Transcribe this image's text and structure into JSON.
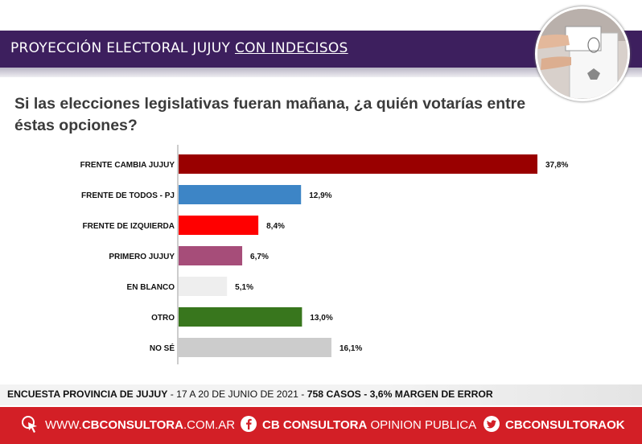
{
  "header": {
    "title_main": "PROYECCIÓN ELECTORAL JUJUY",
    "title_underlined": "CON INDECISOS"
  },
  "question": "Si las elecciones legislativas fueran mañana, ¿a quién votarías entre éstas opciones?",
  "chart_data": {
    "type": "bar",
    "orientation": "horizontal",
    "categories": [
      "FRENTE CAMBIA JUJUY",
      "FRENTE DE TODOS - PJ",
      "FRENTE DE IZQUIERDA",
      "PRIMERO JUJUY",
      "EN BLANCO",
      "OTRO",
      "NO SÉ"
    ],
    "values": [
      37.8,
      12.9,
      8.4,
      6.7,
      5.1,
      13.0,
      16.1
    ],
    "value_labels": [
      "37,8%",
      "12,9%",
      "8,4%",
      "6,7%",
      "5,1%",
      "13,0%",
      "16,1%"
    ],
    "colors": [
      "#990000",
      "#3d85c6",
      "#ff0000",
      "#a64d79",
      "#eeeeee",
      "#38761d",
      "#cccccc"
    ],
    "xlim": [
      0,
      40
    ],
    "grid": false
  },
  "survey_info": {
    "name": "ENCUESTA PROVINCIA DE JUJUY",
    "dates": " - 17 A 20 DE JUNIO DE 2021 - ",
    "details": "758 CASOS - 3,6% MARGEN DE ERROR"
  },
  "footer": {
    "web_prefix": "WWW.",
    "web_bold": "CBCONSULTORA",
    "web_suffix": ".COM.AR",
    "facebook_bold": "CB CONSULTORA",
    "facebook_light": " OPINION PUBLICA",
    "twitter": "CBCONSULTORAOK",
    "icons": [
      "cursor-click-icon",
      "facebook-icon",
      "twitter-icon"
    ]
  }
}
